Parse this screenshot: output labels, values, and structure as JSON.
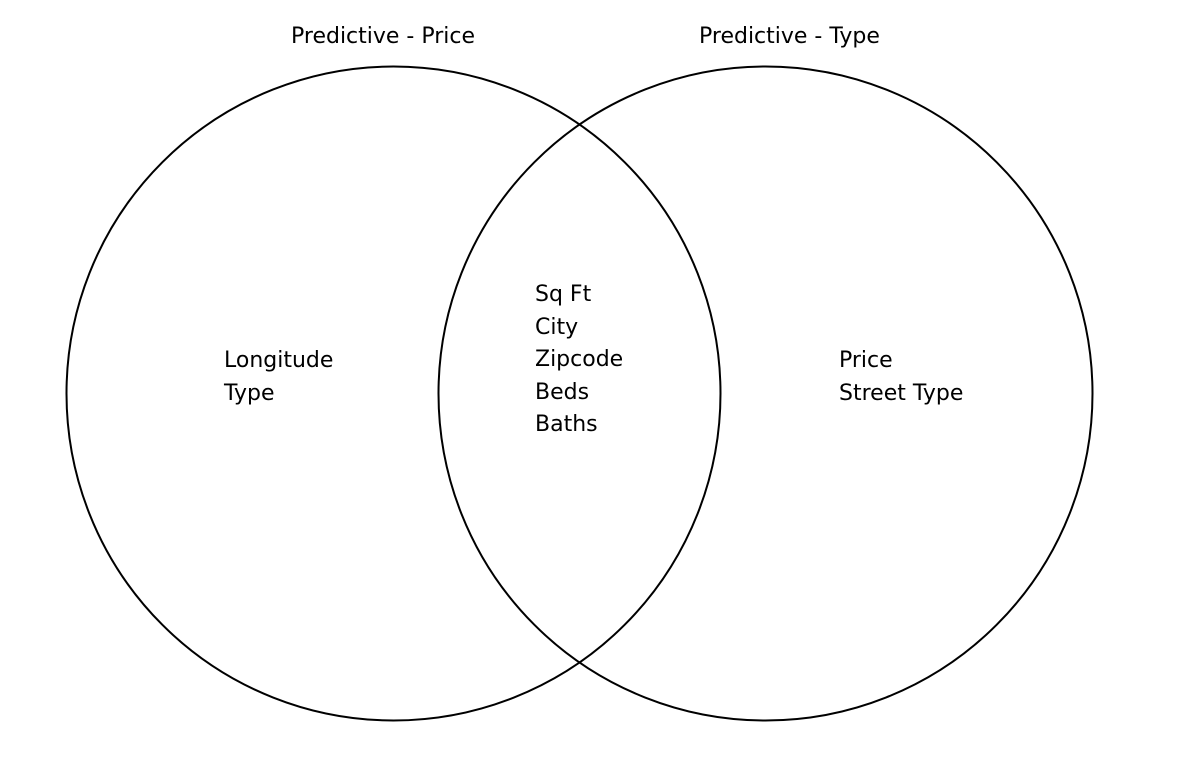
{
  "sets": {
    "left": {
      "title": "Predictive - Price"
    },
    "right": {
      "title": "Predictive - Type"
    }
  },
  "regions": {
    "left_only": [
      "Longitude",
      "Type"
    ],
    "intersection": [
      "Sq Ft",
      "City",
      "Zipcode",
      "Beds",
      "Baths"
    ],
    "right_only": [
      "Price",
      "Street Type"
    ]
  },
  "colors": {
    "outline": "#000000",
    "background": "#ffffff"
  }
}
